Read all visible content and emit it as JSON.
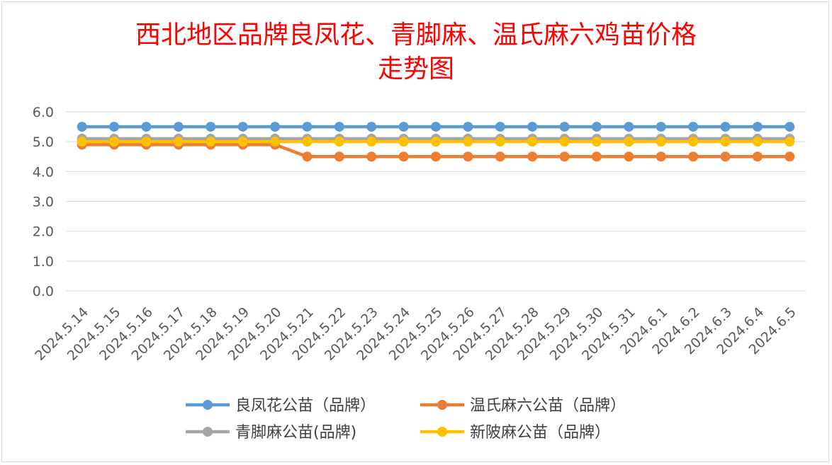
{
  "chart_data": {
    "type": "line",
    "title": "西北地区品牌良凤花、青脚麻、温氏麻六鸡苗价格",
    "subtitle": "走势图",
    "xlabel": "",
    "ylabel": "",
    "ylim": [
      0,
      6
    ],
    "yticks": [
      "0.0",
      "1.0",
      "2.0",
      "3.0",
      "4.0",
      "5.0",
      "6.0"
    ],
    "grid": true,
    "legend_position": "bottom",
    "categories": [
      "2024.5.14",
      "2024.5.15",
      "2024.5.16",
      "2024.5.17",
      "2024.5.18",
      "2024.5.19",
      "2024.5.20",
      "2024.5.21",
      "2024.5.22",
      "2024.5.23",
      "2024.5.24",
      "2024.5.25",
      "2024.5.26",
      "2024.5.27",
      "2024.5.28",
      "2024.5.29",
      "2024.5.30",
      "2024.5.31",
      "2024.6.1",
      "2024.6.2",
      "2024.6.3",
      "2024.6.4",
      "2024.6.5"
    ],
    "series": [
      {
        "name": "良凤花公苗（品牌）",
        "color": "#5b9bd5",
        "values": [
          5.5,
          5.5,
          5.5,
          5.5,
          5.5,
          5.5,
          5.5,
          5.5,
          5.5,
          5.5,
          5.5,
          5.5,
          5.5,
          5.5,
          5.5,
          5.5,
          5.5,
          5.5,
          5.5,
          5.5,
          5.5,
          5.5,
          5.5
        ]
      },
      {
        "name": "温氏麻六公苗（品牌）",
        "color": "#ed7d31",
        "values": [
          4.9,
          4.9,
          4.9,
          4.9,
          4.9,
          4.9,
          4.9,
          4.5,
          4.5,
          4.5,
          4.5,
          4.5,
          4.5,
          4.5,
          4.5,
          4.5,
          4.5,
          4.5,
          4.5,
          4.5,
          4.5,
          4.5,
          4.5
        ]
      },
      {
        "name": "青脚麻公苗(品牌)",
        "color": "#a5a5a5",
        "values": [
          5.1,
          5.1,
          5.1,
          5.1,
          5.1,
          5.1,
          5.1,
          5.1,
          5.1,
          5.1,
          5.1,
          5.1,
          5.1,
          5.1,
          5.1,
          5.1,
          5.1,
          5.1,
          5.1,
          5.1,
          5.1,
          5.1,
          5.1
        ]
      },
      {
        "name": "新陂麻公苗（品牌）",
        "color": "#ffc000",
        "values": [
          5.0,
          5.0,
          5.0,
          5.0,
          5.0,
          5.0,
          5.0,
          5.0,
          5.0,
          5.0,
          5.0,
          5.0,
          5.0,
          5.0,
          5.0,
          5.0,
          5.0,
          5.0,
          5.0,
          5.0,
          5.0,
          5.0,
          5.0
        ]
      }
    ]
  }
}
